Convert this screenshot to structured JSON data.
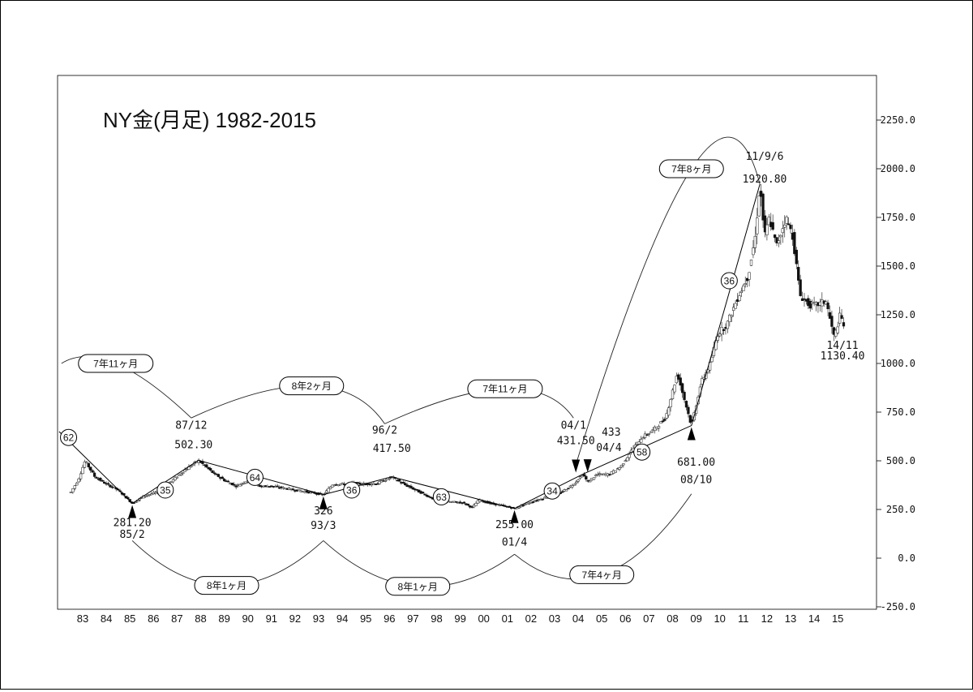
{
  "chart_data": {
    "type": "candlestick",
    "title": "NY金(月足) 1982-2015",
    "y_axis": {
      "ticks": [
        "2250.0",
        "2000.0",
        "1750.0",
        "1500.0",
        "1250.0",
        "1000.0",
        "750.0",
        "500.0",
        "250.0",
        "0.0",
        "-250.0"
      ],
      "range": [
        -250,
        2500
      ]
    },
    "x_axis": {
      "ticks": [
        "83",
        "84",
        "85",
        "86",
        "87",
        "88",
        "89",
        "90",
        "91",
        "92",
        "93",
        "94",
        "95",
        "96",
        "97",
        "98",
        "99",
        "00",
        "01",
        "02",
        "03",
        "04",
        "05",
        "06",
        "07",
        "08",
        "09",
        "10",
        "11",
        "12",
        "13",
        "14",
        "15"
      ]
    },
    "series": [
      {
        "values": [
          [
            1982.5,
            340
          ],
          [
            1982.8,
            400
          ],
          [
            1983.1,
            500
          ],
          [
            1983.5,
            420
          ],
          [
            1984,
            380
          ],
          [
            1984.5,
            350
          ],
          [
            1985.1,
            281.2
          ],
          [
            1985.6,
            320
          ],
          [
            1986.2,
            340
          ],
          [
            1986.7,
            390
          ],
          [
            1987.3,
            450
          ],
          [
            1987.9,
            502.3
          ],
          [
            1988.5,
            440
          ],
          [
            1989,
            400
          ],
          [
            1989.5,
            370
          ],
          [
            1990,
            400
          ],
          [
            1990.5,
            370
          ],
          [
            1991,
            370
          ],
          [
            1991.5,
            360
          ],
          [
            1992,
            350
          ],
          [
            1992.5,
            340
          ],
          [
            1993.2,
            326
          ],
          [
            1993.6,
            380
          ],
          [
            1994,
            380
          ],
          [
            1994.5,
            385
          ],
          [
            1995,
            380
          ],
          [
            1995.5,
            385
          ],
          [
            1996.1,
            417.5
          ],
          [
            1996.6,
            380
          ],
          [
            1997.1,
            350
          ],
          [
            1997.6,
            320
          ],
          [
            1998.1,
            290
          ],
          [
            1998.6,
            290
          ],
          [
            1999.1,
            285
          ],
          [
            1999.5,
            260
          ],
          [
            1999.8,
            300
          ],
          [
            2000.3,
            280
          ],
          [
            2000.8,
            270
          ],
          [
            2001.3,
            255
          ],
          [
            2001.8,
            280
          ],
          [
            2002.3,
            300
          ],
          [
            2002.8,
            320
          ],
          [
            2003.3,
            340
          ],
          [
            2003.8,
            380
          ],
          [
            2004.2,
            431.5
          ],
          [
            2004.4,
            390
          ],
          [
            2004.8,
            430
          ],
          [
            2005.3,
            430
          ],
          [
            2005.8,
            470
          ],
          [
            2006.3,
            560
          ],
          [
            2006.7,
            620
          ],
          [
            2007.2,
            660
          ],
          [
            2007.7,
            720
          ],
          [
            2008.2,
            950
          ],
          [
            2008.8,
            681
          ],
          [
            2009.2,
            900
          ],
          [
            2009.6,
            1000
          ],
          [
            2009.9,
            1150
          ],
          [
            2010.3,
            1200
          ],
          [
            2010.8,
            1350
          ],
          [
            2011.2,
            1450
          ],
          [
            2011.5,
            1650
          ],
          [
            2011.7,
            1920.8
          ],
          [
            2011.9,
            1650
          ],
          [
            2012.1,
            1750
          ],
          [
            2012.4,
            1600
          ],
          [
            2012.8,
            1750
          ],
          [
            2013.1,
            1650
          ],
          [
            2013.4,
            1350
          ],
          [
            2013.8,
            1300
          ],
          [
            2014.1,
            1300
          ],
          [
            2014.5,
            1320
          ],
          [
            2014.85,
            1130.4
          ],
          [
            2015.1,
            1250
          ],
          [
            2015.3,
            1180
          ]
        ]
      }
    ],
    "trend_lines": [
      [
        [
          1982,
          650
        ],
        [
          1985.1,
          281.2
        ],
        [
          1987.9,
          502.3
        ],
        [
          1993.2,
          326
        ],
        [
          1996.1,
          417.5
        ],
        [
          2001.3,
          255
        ],
        [
          2004.2,
          431.5
        ],
        [
          2008.8,
          681
        ],
        [
          2011.7,
          1920.8
        ]
      ]
    ],
    "annotations": {
      "counts": [
        {
          "text": "62",
          "x": 1982.4,
          "y": 620
        },
        {
          "text": "35",
          "x": 1986.5,
          "y": 350
        },
        {
          "text": "64",
          "x": 1990.3,
          "y": 415
        },
        {
          "text": "36",
          "x": 1994.4,
          "y": 350
        },
        {
          "text": "63",
          "x": 1998.2,
          "y": 315
        },
        {
          "text": "34",
          "x": 2002.9,
          "y": 345
        },
        {
          "text": "58",
          "x": 2006.7,
          "y": 545
        },
        {
          "text": "36",
          "x": 2010.4,
          "y": 1425
        }
      ],
      "cycles": [
        {
          "text": "7年11ヶ月",
          "x": 1984.4,
          "y": 1000
        },
        {
          "text": "8年2ヶ月",
          "x": 1992.7,
          "y": 885
        },
        {
          "text": "7年11ヶ月",
          "x": 2000.9,
          "y": 870
        },
        {
          "text": "7年8ヶ月",
          "x": 2008.8,
          "y": 2000
        },
        {
          "text": "8年1ヶ月",
          "x": 1989.1,
          "y": -140
        },
        {
          "text": "8年1ヶ月",
          "x": 1997.2,
          "y": -145
        },
        {
          "text": "7年4ヶ月",
          "x": 2005.0,
          "y": -85
        }
      ],
      "labels": [
        {
          "text": "87/12",
          "x": 1987.6,
          "y": 665
        },
        {
          "text": "502.30",
          "x": 1987.7,
          "y": 565
        },
        {
          "text": "96/2",
          "x": 1995.8,
          "y": 640
        },
        {
          "text": "417.50",
          "x": 1996.1,
          "y": 545
        },
        {
          "text": "04/1",
          "x": 2003.8,
          "y": 665
        },
        {
          "text": "431.50",
          "x": 2003.9,
          "y": 585
        },
        {
          "text": "433",
          "x": 2005.4,
          "y": 630
        },
        {
          "text": "04/4",
          "x": 2005.3,
          "y": 550
        },
        {
          "text": "681.00",
          "x": 2009.0,
          "y": 475
        },
        {
          "text": "08/10",
          "x": 2009.0,
          "y": 385
        },
        {
          "text": "11/9/6",
          "x": 2011.9,
          "y": 2045
        },
        {
          "text": "1920.80",
          "x": 2011.9,
          "y": 1930
        },
        {
          "text": "14/11",
          "x": 2015.2,
          "y": 1075
        },
        {
          "text": "1130.40",
          "x": 2015.2,
          "y": 1020
        },
        {
          "text": "281.20",
          "x": 1985.1,
          "y": 165
        },
        {
          "text": "85/2",
          "x": 1985.1,
          "y": 105
        },
        {
          "text": "326",
          "x": 1993.2,
          "y": 225
        },
        {
          "text": "93/3",
          "x": 1993.2,
          "y": 150
        },
        {
          "text": "255.00",
          "x": 2001.3,
          "y": 155
        },
        {
          "text": "01/4",
          "x": 2001.3,
          "y": 65
        }
      ],
      "arrows": [
        {
          "x": 1985.1,
          "y": 281.2,
          "dir": "up"
        },
        {
          "x": 1993.2,
          "y": 326,
          "dir": "up"
        },
        {
          "x": 2001.3,
          "y": 255,
          "dir": "up"
        },
        {
          "x": 2008.8,
          "y": 681,
          "dir": "up"
        },
        {
          "x": 2003.9,
          "y": 431.5,
          "dir": "down"
        },
        {
          "x": 2004.4,
          "y": 433,
          "dir": "down"
        }
      ]
    }
  }
}
